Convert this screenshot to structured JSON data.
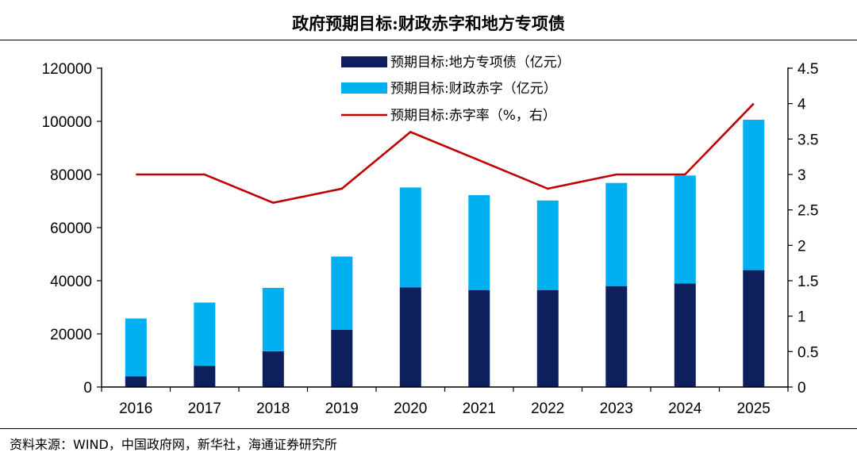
{
  "title": "政府预期目标:财政赤字和地方专项债",
  "source": "资料来源：WIND，中国政府网，新华社，海通证券研究所",
  "colors": {
    "local_bond": "#0d1f5c",
    "deficit": "#00b0f0",
    "rate": "#c00000",
    "axis": "#000000"
  },
  "chart_data": {
    "type": "bar",
    "stacked": true,
    "title": "政府预期目标:财政赤字和地方专项债",
    "categories": [
      "2016",
      "2017",
      "2018",
      "2019",
      "2020",
      "2021",
      "2022",
      "2023",
      "2024",
      "2025"
    ],
    "series": [
      {
        "name": "预期目标:地方专项债（亿元）",
        "type": "bar",
        "axis": "left",
        "values": [
          4000,
          8000,
          13500,
          21500,
          37500,
          36500,
          36500,
          38000,
          39000,
          44000
        ]
      },
      {
        "name": "预期目标:财政赤字（亿元）",
        "type": "bar",
        "axis": "left",
        "values": [
          21800,
          23800,
          23800,
          27600,
          37600,
          35700,
          33700,
          38800,
          40600,
          56600
        ]
      },
      {
        "name": "预期目标:赤字率（%，右）",
        "type": "line",
        "axis": "right",
        "values": [
          3.0,
          3.0,
          2.6,
          2.8,
          3.6,
          3.2,
          2.8,
          3.0,
          3.0,
          4.0
        ]
      }
    ],
    "y_left": {
      "min": 0,
      "max": 120000,
      "ticks": [
        "0",
        "20000",
        "40000",
        "60000",
        "80000",
        "100000",
        "120000"
      ]
    },
    "y_right": {
      "min": 0,
      "max": 4.5,
      "ticks": [
        "0",
        "0.5",
        "1",
        "1.5",
        "2",
        "2.5",
        "3",
        "3.5",
        "4",
        "4.5"
      ]
    },
    "grid": false,
    "legend_position": "top-center"
  }
}
